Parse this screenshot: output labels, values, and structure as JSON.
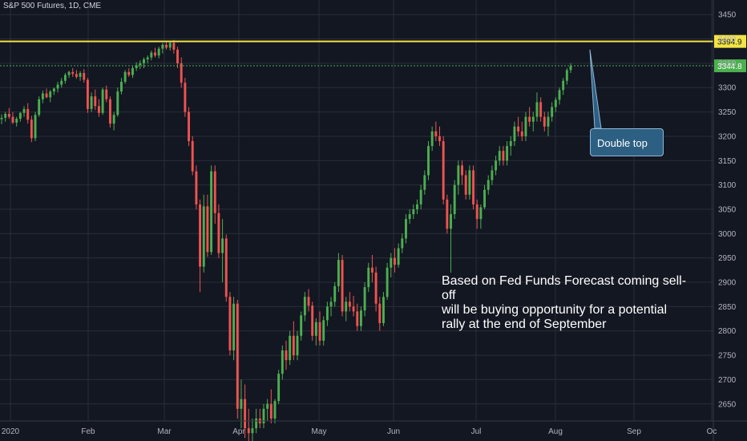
{
  "header": {
    "title": "S&P 500 Futures, 1D, CME"
  },
  "annotation": {
    "line1": "Based on Fed Funds  Forecast coming sell-off",
    "line2": "will be buying opportunity for a potential",
    "line3": "rally at the end of September"
  },
  "callout": {
    "label": "Double top"
  },
  "colors": {
    "background": "#131722",
    "grid": "#2a2e39",
    "up": "#26a69a",
    "up_bar": "#4caf50",
    "down": "#ef5350",
    "resistance": "#f2e346",
    "axis_text": "#b2b5be",
    "price_label_bg": "#f2e346",
    "last_price_bg": "#4caf50"
  },
  "chart_data": {
    "type": "candlestick",
    "symbol": "S&P 500 Futures",
    "interval": "1D",
    "exchange": "CME",
    "x_ticks": [
      "2020",
      "Feb",
      "Mar",
      "Apr",
      "May",
      "Jun",
      "Jul",
      "Aug",
      "Sep",
      "Oc"
    ],
    "y_ticks": [
      3450,
      3400,
      3350,
      3300,
      3250,
      3200,
      3150,
      3100,
      3050,
      3000,
      2950,
      2900,
      2850,
      2800,
      2750,
      2700,
      2650
    ],
    "ylim": [
      2615,
      3480
    ],
    "resistance_level": 3394.9,
    "resistance_label": "3394.9",
    "last_price": 3344.8,
    "last_price_label": "3344.8",
    "grid": true,
    "candles": [
      [
        3235,
        3245,
        3225,
        3238
      ],
      [
        3238,
        3250,
        3230,
        3246
      ],
      [
        3246,
        3258,
        3236,
        3240
      ],
      [
        3240,
        3250,
        3225,
        3228
      ],
      [
        3228,
        3240,
        3220,
        3236
      ],
      [
        3236,
        3250,
        3230,
        3248
      ],
      [
        3248,
        3262,
        3240,
        3256
      ],
      [
        3256,
        3268,
        3226,
        3234
      ],
      [
        3234,
        3242,
        3188,
        3196
      ],
      [
        3196,
        3250,
        3190,
        3244
      ],
      [
        3244,
        3282,
        3240,
        3276
      ],
      [
        3276,
        3294,
        3268,
        3288
      ],
      [
        3288,
        3298,
        3278,
        3280
      ],
      [
        3280,
        3295,
        3270,
        3292
      ],
      [
        3292,
        3300,
        3285,
        3298
      ],
      [
        3298,
        3312,
        3290,
        3306
      ],
      [
        3306,
        3320,
        3300,
        3314
      ],
      [
        3314,
        3330,
        3308,
        3326
      ],
      [
        3326,
        3335,
        3320,
        3332
      ],
      [
        3332,
        3340,
        3322,
        3328
      ],
      [
        3328,
        3336,
        3318,
        3322
      ],
      [
        3322,
        3334,
        3314,
        3330
      ],
      [
        3330,
        3338,
        3310,
        3316
      ],
      [
        3316,
        3320,
        3248,
        3256
      ],
      [
        3256,
        3290,
        3250,
        3282
      ],
      [
        3282,
        3296,
        3254,
        3262
      ],
      [
        3262,
        3276,
        3240,
        3248
      ],
      [
        3248,
        3300,
        3244,
        3296
      ],
      [
        3296,
        3304,
        3270,
        3276
      ],
      [
        3276,
        3282,
        3218,
        3226
      ],
      [
        3226,
        3250,
        3212,
        3244
      ],
      [
        3244,
        3300,
        3240,
        3292
      ],
      [
        3292,
        3320,
        3286,
        3312
      ],
      [
        3312,
        3336,
        3308,
        3332
      ],
      [
        3332,
        3340,
        3322,
        3326
      ],
      [
        3326,
        3344,
        3320,
        3340
      ],
      [
        3340,
        3352,
        3334,
        3346
      ],
      [
        3346,
        3356,
        3338,
        3350
      ],
      [
        3350,
        3362,
        3340,
        3358
      ],
      [
        3358,
        3366,
        3350,
        3362
      ],
      [
        3362,
        3376,
        3356,
        3372
      ],
      [
        3372,
        3382,
        3362,
        3366
      ],
      [
        3366,
        3384,
        3360,
        3380
      ],
      [
        3380,
        3392,
        3370,
        3388
      ],
      [
        3388,
        3396,
        3378,
        3382
      ],
      [
        3382,
        3396,
        3376,
        3392
      ],
      [
        3392,
        3398,
        3370,
        3378
      ],
      [
        3378,
        3384,
        3340,
        3350
      ],
      [
        3350,
        3362,
        3300,
        3310
      ],
      [
        3310,
        3320,
        3240,
        3250
      ],
      [
        3250,
        3260,
        3180,
        3190
      ],
      [
        3190,
        3200,
        3120,
        3128
      ],
      [
        3128,
        3140,
        3050,
        3060
      ],
      [
        3060,
        3070,
        2880,
        2932
      ],
      [
        2932,
        3080,
        2920,
        3056
      ],
      [
        3056,
        3080,
        2952,
        2962
      ],
      [
        2962,
        3140,
        2956,
        3128
      ],
      [
        3128,
        3140,
        3020,
        3042
      ],
      [
        3042,
        3060,
        2950,
        2960
      ],
      [
        2960,
        3030,
        2900,
        2990
      ],
      [
        2990,
        2998,
        2860,
        2870
      ],
      [
        2870,
        2880,
        2750,
        2760
      ],
      [
        2760,
        2870,
        2740,
        2856
      ],
      [
        2856,
        2864,
        2620,
        2640
      ],
      [
        2640,
        2700,
        2600,
        2660
      ],
      [
        2660,
        2690,
        2580,
        2600
      ],
      [
        2600,
        2640,
        2560,
        2590
      ],
      [
        2590,
        2620,
        2560,
        2600
      ],
      [
        2600,
        2640,
        2590,
        2620
      ],
      [
        2620,
        2640,
        2600,
        2610
      ],
      [
        2610,
        2650,
        2600,
        2640
      ],
      [
        2640,
        2660,
        2616,
        2650
      ],
      [
        2650,
        2680,
        2610,
        2620
      ],
      [
        2620,
        2660,
        2610,
        2656
      ],
      [
        2656,
        2720,
        2650,
        2712
      ],
      [
        2712,
        2770,
        2700,
        2760
      ],
      [
        2760,
        2780,
        2720,
        2740
      ],
      [
        2740,
        2800,
        2730,
        2790
      ],
      [
        2790,
        2820,
        2740,
        2750
      ],
      [
        2750,
        2800,
        2740,
        2790
      ],
      [
        2790,
        2840,
        2780,
        2832
      ],
      [
        2832,
        2880,
        2820,
        2870
      ],
      [
        2870,
        2886,
        2840,
        2852
      ],
      [
        2852,
        2860,
        2780,
        2790
      ],
      [
        2790,
        2826,
        2770,
        2818
      ],
      [
        2818,
        2840,
        2770,
        2780
      ],
      [
        2780,
        2830,
        2770,
        2822
      ],
      [
        2822,
        2860,
        2810,
        2850
      ],
      [
        2850,
        2870,
        2830,
        2860
      ],
      [
        2860,
        2900,
        2850,
        2892
      ],
      [
        2892,
        2960,
        2880,
        2946
      ],
      [
        2946,
        2956,
        2830,
        2840
      ],
      [
        2840,
        2870,
        2820,
        2860
      ],
      [
        2860,
        2880,
        2840,
        2850
      ],
      [
        2850,
        2872,
        2830,
        2840
      ],
      [
        2840,
        2856,
        2800,
        2810
      ],
      [
        2810,
        2850,
        2800,
        2842
      ],
      [
        2842,
        2900,
        2830,
        2890
      ],
      [
        2890,
        2940,
        2880,
        2930
      ],
      [
        2930,
        2956,
        2900,
        2920
      ],
      [
        2920,
        2932,
        2840,
        2856
      ],
      [
        2856,
        2870,
        2800,
        2816
      ],
      [
        2816,
        2880,
        2810,
        2870
      ],
      [
        2870,
        2940,
        2864,
        2930
      ],
      [
        2930,
        2960,
        2910,
        2950
      ],
      [
        2950,
        2970,
        2920,
        2936
      ],
      [
        2936,
        2980,
        2930,
        2970
      ],
      [
        2970,
        3000,
        2960,
        2990
      ],
      [
        2990,
        3040,
        2980,
        3030
      ],
      [
        3030,
        3050,
        3020,
        3040
      ],
      [
        3040,
        3060,
        3030,
        3050
      ],
      [
        3050,
        3070,
        3040,
        3060
      ],
      [
        3060,
        3100,
        3050,
        3090
      ],
      [
        3090,
        3130,
        3080,
        3120
      ],
      [
        3120,
        3190,
        3110,
        3180
      ],
      [
        3180,
        3220,
        3170,
        3210
      ],
      [
        3210,
        3230,
        3190,
        3200
      ],
      [
        3200,
        3220,
        3180,
        3190
      ],
      [
        3190,
        3200,
        3060,
        3070
      ],
      [
        3070,
        3080,
        3000,
        3010
      ],
      [
        3010,
        3060,
        2920,
        3040
      ],
      [
        3040,
        3110,
        3030,
        3100
      ],
      [
        3100,
        3150,
        3080,
        3140
      ],
      [
        3140,
        3150,
        3100,
        3120
      ],
      [
        3120,
        3130,
        3070,
        3080
      ],
      [
        3080,
        3140,
        3070,
        3130
      ],
      [
        3130,
        3140,
        3050,
        3060
      ],
      [
        3060,
        3070,
        3010,
        3030
      ],
      [
        3030,
        3060,
        3010,
        3054
      ],
      [
        3054,
        3100,
        3050,
        3090
      ],
      [
        3090,
        3120,
        3080,
        3110
      ],
      [
        3110,
        3140,
        3100,
        3130
      ],
      [
        3130,
        3160,
        3120,
        3150
      ],
      [
        3150,
        3180,
        3140,
        3170
      ],
      [
        3170,
        3180,
        3140,
        3150
      ],
      [
        3150,
        3190,
        3140,
        3180
      ],
      [
        3180,
        3200,
        3160,
        3190
      ],
      [
        3190,
        3230,
        3180,
        3220
      ],
      [
        3220,
        3240,
        3200,
        3210
      ],
      [
        3210,
        3230,
        3190,
        3200
      ],
      [
        3200,
        3250,
        3190,
        3240
      ],
      [
        3240,
        3260,
        3220,
        3230
      ],
      [
        3230,
        3250,
        3210,
        3240
      ],
      [
        3240,
        3290,
        3230,
        3270
      ],
      [
        3270,
        3280,
        3230,
        3240
      ],
      [
        3240,
        3250,
        3210,
        3220
      ],
      [
        3220,
        3250,
        3200,
        3240
      ],
      [
        3240,
        3270,
        3230,
        3260
      ],
      [
        3260,
        3280,
        3250,
        3275
      ],
      [
        3275,
        3300,
        3265,
        3295
      ],
      [
        3295,
        3320,
        3285,
        3314
      ],
      [
        3314,
        3340,
        3306,
        3336
      ],
      [
        3336,
        3350,
        3330,
        3344
      ]
    ]
  }
}
